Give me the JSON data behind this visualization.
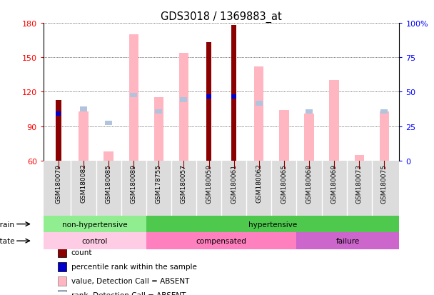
{
  "title": "GDS3018 / 1369883_at",
  "samples": [
    "GSM180079",
    "GSM180082",
    "GSM180085",
    "GSM180089",
    "GSM178755",
    "GSM180057",
    "GSM180059",
    "GSM180061",
    "GSM180062",
    "GSM180065",
    "GSM180068",
    "GSM180069",
    "GSM180073",
    "GSM180075"
  ],
  "count_values": [
    113,
    null,
    null,
    null,
    null,
    null,
    163,
    178,
    null,
    null,
    null,
    null,
    null,
    null
  ],
  "percentile_rank_left": [
    101,
    null,
    null,
    null,
    null,
    null,
    116,
    116,
    null,
    null,
    null,
    null,
    null,
    null
  ],
  "value_absent": [
    null,
    103,
    68,
    170,
    115,
    154,
    null,
    null,
    142,
    104,
    101,
    130,
    65,
    103
  ],
  "rank_absent_left": [
    null,
    105,
    93,
    117,
    103,
    113,
    null,
    null,
    110,
    null,
    103,
    null,
    null,
    103
  ],
  "ylim_left": [
    60,
    180
  ],
  "yticks_left": [
    60,
    90,
    120,
    150,
    180
  ],
  "yticks_right": [
    0,
    25,
    50,
    75,
    100
  ],
  "color_count": "#8B0000",
  "color_percentile": "#0000CD",
  "color_value_absent": "#FFB6C1",
  "color_rank_absent": "#B0C4DE",
  "strain_groups": [
    {
      "label": "non-hypertensive",
      "start": 0,
      "end": 4,
      "color": "#90EE90"
    },
    {
      "label": "hypertensive",
      "start": 4,
      "end": 14,
      "color": "#4EC94E"
    }
  ],
  "disease_groups": [
    {
      "label": "control",
      "start": 0,
      "end": 4,
      "color": "#FFCCE5"
    },
    {
      "label": "compensated",
      "start": 4,
      "end": 10,
      "color": "#FF80BF"
    },
    {
      "label": "failure",
      "start": 10,
      "end": 14,
      "color": "#CC66CC"
    }
  ],
  "legend_items": [
    {
      "label": "count",
      "color": "#8B0000"
    },
    {
      "label": "percentile rank within the sample",
      "color": "#0000CD"
    },
    {
      "label": "value, Detection Call = ABSENT",
      "color": "#FFB6C1"
    },
    {
      "label": "rank, Detection Call = ABSENT",
      "color": "#B0C4DE"
    }
  ]
}
